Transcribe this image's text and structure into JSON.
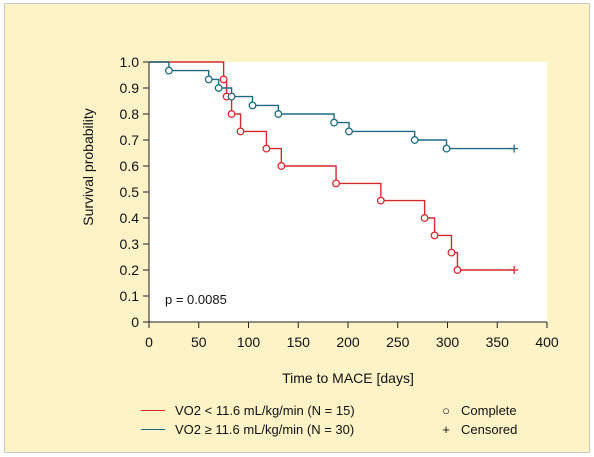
{
  "chart_data": {
    "type": "line",
    "subtype": "kaplan-meier",
    "xlabel": "Time to MACE [days]",
    "ylabel": "Survival probability",
    "xlim": [
      0,
      400
    ],
    "ylim": [
      0,
      1.0
    ],
    "xticks": [
      0,
      50,
      100,
      150,
      200,
      250,
      300,
      350,
      400
    ],
    "yticks": [
      0,
      0.1,
      0.2,
      0.3,
      0.4,
      0.5,
      0.6,
      0.7,
      0.8,
      0.9,
      1.0
    ],
    "ytick_labels": [
      "0",
      "0.1",
      "0.2",
      "0.3",
      "0.4",
      "0.5",
      "0.6",
      "0.7",
      "0.8",
      "0.9",
      "1.0"
    ],
    "grid": false,
    "annotation": "p = 0.0085",
    "series": [
      {
        "name": "VO2 < 11.6 mL/kg/min (N = 15)",
        "color": "#d42a2f",
        "steps": [
          [
            0,
            1.0
          ],
          [
            75,
            0.933
          ],
          [
            78,
            0.867
          ],
          [
            83,
            0.8
          ],
          [
            92,
            0.733
          ],
          [
            118,
            0.667
          ],
          [
            133,
            0.6
          ],
          [
            188,
            0.533
          ],
          [
            233,
            0.467
          ],
          [
            277,
            0.4
          ],
          [
            287,
            0.333
          ],
          [
            304,
            0.267
          ],
          [
            310,
            0.2
          ]
        ],
        "end": 367,
        "events": [
          [
            75,
            0.933
          ],
          [
            78,
            0.867
          ],
          [
            83,
            0.8
          ],
          [
            92,
            0.733
          ],
          [
            118,
            0.667
          ],
          [
            133,
            0.6
          ],
          [
            188,
            0.533
          ],
          [
            233,
            0.467
          ],
          [
            277,
            0.4
          ],
          [
            287,
            0.333
          ],
          [
            304,
            0.267
          ],
          [
            310,
            0.2
          ]
        ],
        "censored": [
          [
            367,
            0.2
          ]
        ]
      },
      {
        "name": "VO2 ≥ 11.6 mL/kg/min (N = 30)",
        "color": "#1d6a82",
        "steps": [
          [
            0,
            1.0
          ],
          [
            20,
            0.967
          ],
          [
            60,
            0.933
          ],
          [
            70,
            0.9
          ],
          [
            83,
            0.867
          ],
          [
            104,
            0.833
          ],
          [
            130,
            0.8
          ],
          [
            186,
            0.767
          ],
          [
            201,
            0.733
          ],
          [
            267,
            0.7
          ],
          [
            299,
            0.667
          ]
        ],
        "end": 367,
        "events": [
          [
            20,
            0.967
          ],
          [
            60,
            0.933
          ],
          [
            70,
            0.9
          ],
          [
            83,
            0.867
          ],
          [
            104,
            0.833
          ],
          [
            130,
            0.8
          ],
          [
            186,
            0.767
          ],
          [
            201,
            0.733
          ],
          [
            267,
            0.7
          ],
          [
            299,
            0.667
          ]
        ],
        "censored": [
          [
            367,
            0.667
          ]
        ]
      }
    ],
    "legend_markers": [
      {
        "symbol": "○",
        "label": "Complete"
      },
      {
        "symbol": "+",
        "label": "Censored"
      }
    ]
  }
}
